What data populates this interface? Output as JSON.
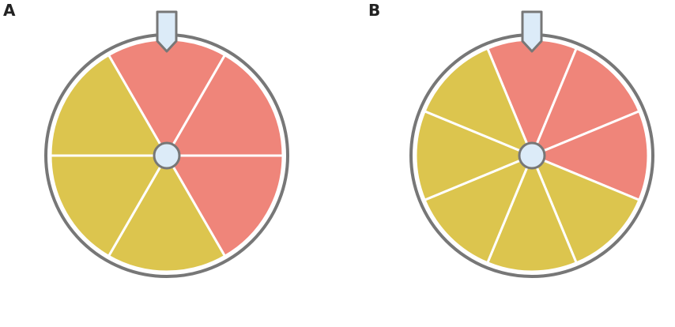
{
  "panels": [
    {
      "label": "A",
      "sectors": [
        "#ef857a",
        "#ef857a",
        "#ef857a",
        "#dcc54e",
        "#dcc54e",
        "#dcc54e"
      ]
    },
    {
      "label": "B",
      "sectors": [
        "#ef857a",
        "#ef857a",
        "#ef857a",
        "#dcc54e",
        "#dcc54e",
        "#dcc54e",
        "#dcc54e",
        "#dcc54e"
      ]
    }
  ]
}
